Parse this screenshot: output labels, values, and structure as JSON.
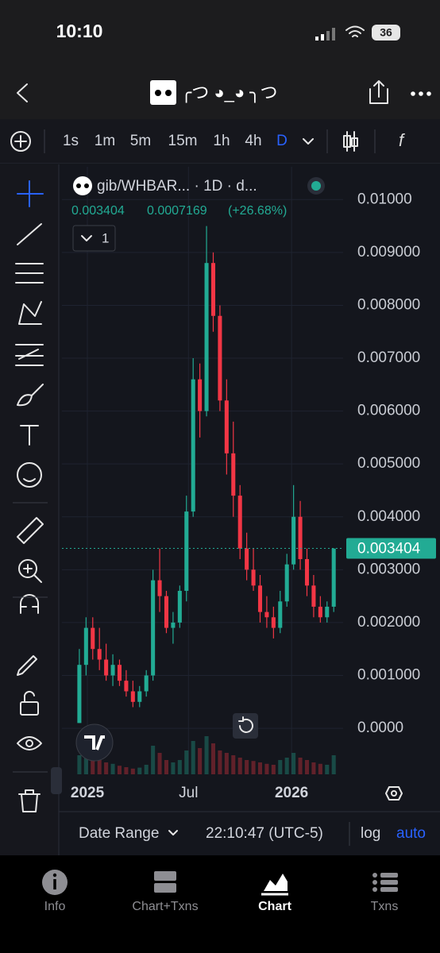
{
  "status_bar": {
    "time": "10:10",
    "battery": "36"
  },
  "header": {
    "title": "╭つ ◕_◕ ╮つ"
  },
  "timeframes": [
    "1s",
    "1m",
    "5m",
    "15m",
    "1h",
    "4h",
    "D"
  ],
  "chart": {
    "type": "candlestick",
    "legend": {
      "symbol": "gib/WHBAR... · 1D · d...",
      "price": "0.003404",
      "change": "0.0007169",
      "change_pct": "(+26.68%)",
      "indicators": "1"
    },
    "ylim": [
      -0.00087,
      0.01062
    ],
    "yticks": [
      {
        "value": 0,
        "label": "0.0000"
      },
      {
        "value": 0.001,
        "label": "0.001000"
      },
      {
        "value": 0.002,
        "label": "0.002000"
      },
      {
        "value": 0.003,
        "label": "0.003000"
      },
      {
        "value": 0.004,
        "label": "0.004000"
      },
      {
        "value": 0.005,
        "label": "0.005000"
      },
      {
        "value": 0.006,
        "label": "0.006000"
      },
      {
        "value": 0.007,
        "label": "0.007000"
      },
      {
        "value": 0.008,
        "label": "0.008000"
      },
      {
        "value": 0.009,
        "label": "0.009000"
      },
      {
        "value": 0.01,
        "label": "0.01000"
      }
    ],
    "xlim": [
      -2.6,
      39.4
    ],
    "xticks": [
      {
        "value": 1.2,
        "label": "2025"
      },
      {
        "value": 16.3,
        "label": "Jul"
      },
      {
        "value": 31.7,
        "label": "2026"
      }
    ],
    "last_price": {
      "value": 0.003404,
      "label": "0.003404"
    },
    "up_color": "#22ab94",
    "down_color": "#f23645",
    "open": [
      0.0001,
      0.0012,
      0.0019,
      0.0015,
      0.0013,
      0.001,
      0.0012,
      0.0009,
      0.0007,
      0.0005,
      0.0007,
      0.001,
      0.0028,
      0.0025,
      0.0019,
      0.002,
      0.0026,
      0.0041,
      0.0066,
      0.006,
      0.0088,
      0.0078,
      0.0062,
      0.0052,
      0.0044,
      0.0034,
      0.003,
      0.0027,
      0.0022,
      0.0021,
      0.0019,
      0.0024,
      0.0031,
      0.004,
      0.0032,
      0.0027,
      0.0023,
      0.0021,
      0.0023
    ],
    "high": [
      0.0015,
      0.0021,
      0.0021,
      0.0019,
      0.0016,
      0.0014,
      0.0013,
      0.0011,
      0.0009,
      0.0008,
      0.0011,
      0.003,
      0.0034,
      0.0026,
      0.0022,
      0.0027,
      0.0044,
      0.007,
      0.0069,
      0.0095,
      0.009,
      0.008,
      0.0066,
      0.0058,
      0.0046,
      0.0037,
      0.0034,
      0.0029,
      0.0025,
      0.0023,
      0.0026,
      0.0033,
      0.0046,
      0.0043,
      0.0034,
      0.0029,
      0.0025,
      0.0024,
      0.0034
    ],
    "low": [
      0.0001,
      0.001,
      0.0013,
      0.0011,
      0.0009,
      0.0008,
      0.0008,
      0.0006,
      0.0004,
      0.0004,
      0.0006,
      0.0009,
      0.0022,
      0.0018,
      0.0016,
      0.0019,
      0.0024,
      0.004,
      0.0055,
      0.0059,
      0.0075,
      0.006,
      0.0048,
      0.004,
      0.0032,
      0.0028,
      0.0026,
      0.002,
      0.0019,
      0.0017,
      0.0018,
      0.0023,
      0.003,
      0.003,
      0.0025,
      0.0021,
      0.002,
      0.002,
      0.0022
    ],
    "close": [
      0.0012,
      0.0019,
      0.0015,
      0.0013,
      0.001,
      0.0012,
      0.0009,
      0.0007,
      0.0005,
      0.0007,
      0.001,
      0.0028,
      0.0025,
      0.0019,
      0.002,
      0.0026,
      0.0041,
      0.0066,
      0.006,
      0.0088,
      0.0078,
      0.0062,
      0.0052,
      0.0044,
      0.0034,
      0.003,
      0.0027,
      0.0022,
      0.0021,
      0.0019,
      0.0024,
      0.0031,
      0.004,
      0.0032,
      0.0027,
      0.0023,
      0.0021,
      0.0023,
      0.0034
    ],
    "vlim": [
      0,
      100
    ],
    "volume": [
      40,
      55,
      35,
      30,
      25,
      22,
      18,
      15,
      12,
      14,
      20,
      60,
      45,
      30,
      25,
      30,
      50,
      70,
      55,
      80,
      65,
      50,
      45,
      40,
      35,
      30,
      28,
      25,
      22,
      20,
      30,
      35,
      45,
      35,
      30,
      25,
      22,
      20,
      40
    ]
  },
  "bottom_bar": {
    "date_range": "Date Range",
    "time": "22:10:47 (UTC-5)",
    "log": "log",
    "auto": "auto"
  },
  "tabs": [
    "Info",
    "Chart+Txns",
    "Chart",
    "Txns"
  ]
}
